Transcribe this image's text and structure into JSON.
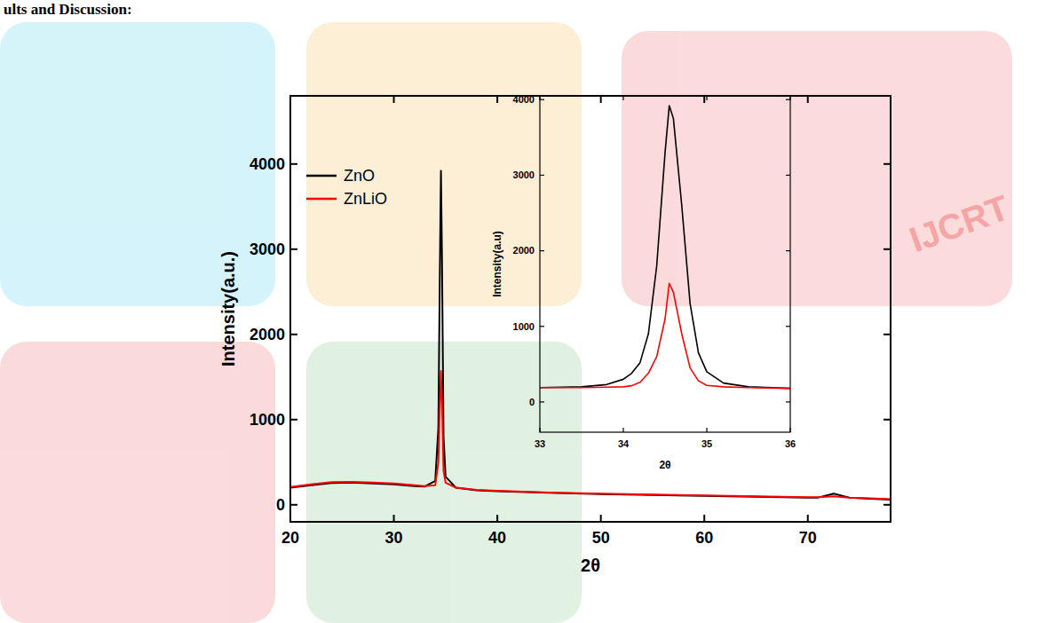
{
  "heading": "ults and Discussion:",
  "watermark": "IJCRT",
  "chart_data": [
    {
      "type": "line",
      "x_label": "2θ",
      "y_label": "Intensity(a.u.)",
      "xlim": [
        20,
        78
      ],
      "ylim": [
        -200,
        4800
      ],
      "xticks": [
        20,
        30,
        40,
        50,
        60,
        70
      ],
      "yticks": [
        0,
        1000,
        2000,
        3000,
        4000
      ],
      "legend": "top-left",
      "x": [
        20,
        22,
        24,
        26,
        28,
        30,
        32,
        33,
        34,
        34.3,
        34.45,
        34.55,
        34.65,
        34.8,
        35,
        36,
        38,
        40,
        45,
        50,
        55,
        60,
        65,
        70,
        71,
        72.5,
        74,
        76,
        78
      ],
      "series": [
        {
          "name": "ZnO",
          "color": "#000000",
          "values": [
            200,
            230,
            255,
            260,
            250,
            240,
            220,
            215,
            280,
            900,
            2800,
            3920,
            2900,
            800,
            330,
            200,
            170,
            160,
            140,
            125,
            115,
            105,
            95,
            85,
            85,
            130,
            85,
            70,
            60
          ]
        },
        {
          "name": "ZnLiO",
          "color": "#ff0000",
          "values": [
            210,
            240,
            265,
            270,
            260,
            250,
            230,
            220,
            230,
            500,
            1200,
            1570,
            1200,
            400,
            260,
            200,
            175,
            165,
            145,
            130,
            120,
            110,
            100,
            90,
            90,
            100,
            85,
            75,
            65
          ]
        }
      ]
    },
    {
      "type": "line",
      "x_label": "2θ",
      "y_label": "Intensity(a.u)",
      "xlim": [
        33,
        36
      ],
      "ylim": [
        -400,
        4050
      ],
      "xticks": [
        33,
        34,
        35,
        36
      ],
      "yticks": [
        0,
        1000,
        2000,
        3000,
        4000
      ],
      "x": [
        33,
        33.5,
        33.8,
        34,
        34.1,
        34.2,
        34.3,
        34.4,
        34.5,
        34.55,
        34.6,
        34.7,
        34.8,
        34.9,
        35,
        35.2,
        35.5,
        36
      ],
      "series": [
        {
          "name": "ZnO",
          "color": "#000000",
          "values": [
            190,
            200,
            230,
            300,
            380,
            520,
            900,
            1800,
            3300,
            3920,
            3750,
            2600,
            1300,
            650,
            400,
            250,
            200,
            180
          ]
        },
        {
          "name": "ZnLiO",
          "color": "#ff0000",
          "values": [
            190,
            190,
            195,
            200,
            215,
            260,
            380,
            600,
            1100,
            1570,
            1450,
            900,
            450,
            280,
            220,
            200,
            190,
            180
          ]
        }
      ]
    }
  ]
}
